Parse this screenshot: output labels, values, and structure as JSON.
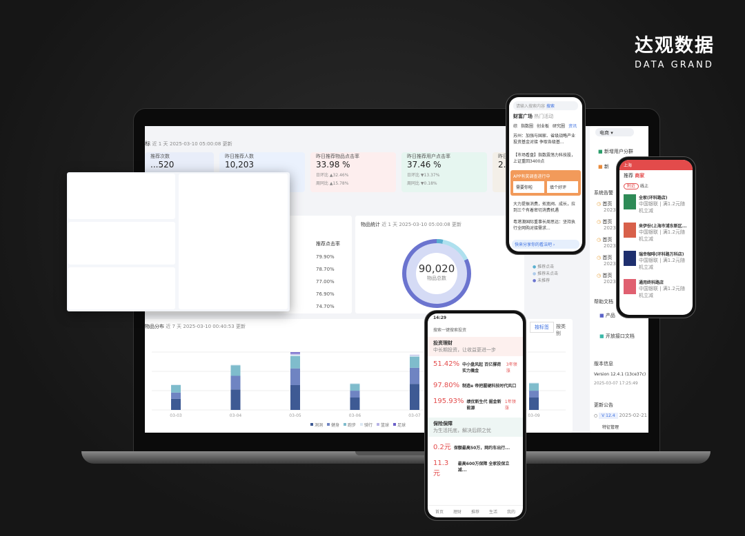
{
  "brand": {
    "name_cn": "达观数据",
    "name_en": "DATA GRAND"
  },
  "dashboard": {
    "header": {
      "title": "标",
      "range": "近 1 天",
      "updated": "2025-03-10 05:00:08 更新"
    },
    "cards": [
      {
        "title": "推荐次数",
        "value": "...520"
      },
      {
        "title": "昨日推荐人数",
        "value": "10,203"
      },
      {
        "title": "昨日推荐物品点击率",
        "value": "33.98 %",
        "dod": "日环比 ▲32.46%",
        "wow": "周同比 ▲15.78%"
      },
      {
        "title": "昨日推荐用户点击率",
        "value": "37.46 %",
        "dod": "日环比 ▼13.37%",
        "wow": "周同比 ▼0.18%"
      },
      {
        "title": "昨日",
        "value": "2.0"
      }
    ],
    "table": {
      "header": "推荐点击率",
      "rows": [
        "79.90%",
        "78.70%",
        "77.00%",
        "76.90%",
        "74.70%"
      ]
    },
    "donut": {
      "title": "物品统计",
      "range": "近 1 天",
      "updated": "2025-03-10 05:00:08 更新",
      "total": "90,020",
      "total_label": "物品总数",
      "legend": [
        "推荐点击",
        "推荐未点击",
        "未推荐"
      ],
      "colors": [
        "#5ab0d0",
        "#aecbea",
        "#6b74cf"
      ]
    },
    "distribution": {
      "title": "物品分布",
      "range": "近 7 天",
      "updated": "2025-03-10 00:40:53 更新",
      "tabs": [
        "按标签",
        "按类别"
      ]
    },
    "sidebar": {
      "select": "电商",
      "shortcuts": [
        "新增用户分群",
        "新"
      ],
      "alerts_title": "系统告警",
      "alerts": [
        {
          "t": "首页",
          "d": "2023"
        },
        {
          "t": "首页",
          "d": "2023"
        },
        {
          "t": "首页",
          "d": "2023"
        },
        {
          "t": "首页",
          "d": "2023"
        },
        {
          "t": "首页",
          "d": "2023"
        }
      ],
      "help_title": "帮助文档",
      "help": [
        "产品",
        "开放接口文档"
      ],
      "version_title": "版本信息",
      "version": "Version  12.4.1 (13ce37c)",
      "version_date": "2025-03-07 17:25:49",
      "notice_title": "更新公告",
      "notice_tag": "V 12.4",
      "notice_date": "2025-02-21",
      "notice_item": "特征管理"
    }
  },
  "chart_data": {
    "type": "bar",
    "stacked": true,
    "categories": [
      "03-03",
      "03-04",
      "03-05",
      "03-06",
      "03-07",
      "03-08",
      "03-09"
    ],
    "series": [
      {
        "name": "洞洞",
        "values": [
          18,
          33,
          40,
          20,
          42,
          0,
          20
        ]
      },
      {
        "name": "健身",
        "values": [
          10,
          22,
          27,
          11,
          26,
          0,
          11
        ]
      },
      {
        "name": "跑步",
        "values": [
          12,
          17,
          20,
          11,
          18,
          0,
          12
        ]
      },
      {
        "name": "骑行",
        "values": [
          1,
          1,
          2,
          1,
          2,
          0,
          1
        ]
      },
      {
        "name": "篮球",
        "values": [
          0,
          0,
          2,
          0,
          1,
          0,
          0
        ]
      },
      {
        "name": "足球",
        "values": [
          0,
          0,
          2,
          0,
          0,
          0,
          0
        ]
      }
    ],
    "colors": [
      "#3e5a94",
      "#6f84c2",
      "#7fbccc",
      "#dce9f3",
      "#b7b3e6",
      "#6a5fc8"
    ],
    "grid": true,
    "legend": "bottom"
  },
  "phone_top": {
    "search": "请输入搜索内容",
    "search_btn": "搜索",
    "tabs": [
      "财富广场",
      "热门活动"
    ],
    "subtabs": [
      "综",
      "指数圈",
      "创业板",
      "研究圈",
      "资讯"
    ],
    "news": [
      "苏州：加强与国家、省级战略产业投资基金对接 争取各级基...",
      "【市场看盘】指数震荡力科技股，上证重回3400点",
      "大力提振消费，拓宽阀、成长，拉到三个有着密切消费机遇",
      "粤港澳国际重事长周思远：坚持执行全网购对接需求..."
    ],
    "banner": "APP有奖调查进行中",
    "banner_items": [
      "需要你啦",
      "填个好评"
    ],
    "footer": "快来分享你的看法吧 ›"
  },
  "phone_right": {
    "city": "上海",
    "tabs": [
      "推荐",
      "商家"
    ],
    "filters": [
      "附近",
      "线上"
    ],
    "shops": [
      "全家(环科路店)",
      "来伊份(上海市浦东新区...",
      "瑞幸咖啡(环科路万科店)",
      "通用终科路店"
    ],
    "bank": "中国银联 | 满1.2元随机立减"
  },
  "phone_bottom": {
    "time": "14:29",
    "search": "搜索一键搜索投资",
    "sections": [
      {
        "title": "投资理财",
        "sub": "中长期投资，让收益更进一步"
      },
      {
        "title": "保险保障",
        "sub": "为生活托底，解决后顾之忧"
      }
    ],
    "products": [
      {
        "rate": "51.42%",
        "name": "中小盘风起 百亿撑荷实力擒金",
        "tag": "3年领涨"
      },
      {
        "rate": "97.80%",
        "name": "制造e 帝把握硬科技时代风口",
        "tag": ""
      },
      {
        "rate": "195.93%",
        "name": "绩优新生代 掘金新能源",
        "tag": "1年领涨"
      },
      {
        "rate": "0.2元",
        "name": "保额最高50万，网约车出行...",
        "tag": ""
      },
      {
        "rate": "11.3元",
        "name": "最高600万保障 全家投保立减...",
        "tag": ""
      }
    ],
    "nav": [
      "首页",
      "理财",
      "推荐",
      "生活",
      "我的"
    ]
  }
}
